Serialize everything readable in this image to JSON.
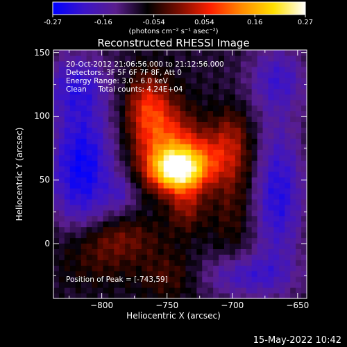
{
  "chart_data": {
    "type": "heatmap",
    "title": "Reconstructed RHESSI Image",
    "xlabel": "Heliocentric X (arcsec)",
    "ylabel": "Heliocentric Y (arcsec)",
    "xlim": [
      -837,
      -643
    ],
    "ylim": [
      -43,
      152
    ],
    "xticks": [
      -800,
      -750,
      -700,
      -650
    ],
    "yticks": [
      0,
      50,
      100,
      150
    ],
    "colorbar": {
      "range": [
        -0.27,
        0.27
      ],
      "ticks": [
        "-0.27",
        "-0.16",
        "-0.054",
        "0.054",
        "0.16",
        "0.27"
      ],
      "units": "(photons cm⁻² s⁻¹ asec⁻²)",
      "colors": [
        "#0000ff",
        "#3c14c8",
        "#5a1e8c",
        "#000000",
        "#7a0d00",
        "#ff2000",
        "#ff8c00",
        "#ffe000",
        "#ffffff"
      ]
    },
    "annotations": [
      "20-Oct-2012 21:06:56.000 to 21:12:56.000",
      "Detectors: 3F 5F 6F 7F 8F, Att 0",
      "Energy Range: 3.0 - 6.0 keV",
      "Clean     Total counts: 4.24E+04",
      "Position of Peak = [-743,59]"
    ],
    "peak": [
      -743,
      59
    ],
    "blobs": [
      {
        "x": -742,
        "y": 58,
        "sx": 14,
        "sy": 11,
        "v": 0.3
      },
      {
        "x": -752,
        "y": 80,
        "sx": 18,
        "sy": 22,
        "v": 0.15
      },
      {
        "x": -765,
        "y": 110,
        "sx": 12,
        "sy": 18,
        "v": 0.12
      },
      {
        "x": -718,
        "y": 68,
        "sx": 22,
        "sy": 15,
        "v": 0.11
      },
      {
        "x": -735,
        "y": 30,
        "sx": 10,
        "sy": 14,
        "v": 0.09
      },
      {
        "x": -700,
        "y": 35,
        "sx": 12,
        "sy": 30,
        "v": 0.06
      },
      {
        "x": -790,
        "y": 5,
        "sx": 25,
        "sy": 12,
        "v": 0.08
      },
      {
        "x": -748,
        "y": -25,
        "sx": 16,
        "sy": 14,
        "v": 0.06
      },
      {
        "x": -805,
        "y": -15,
        "sx": 22,
        "sy": 14,
        "v": 0.05
      },
      {
        "x": -700,
        "y": 90,
        "sx": 10,
        "sy": 14,
        "v": 0.06
      },
      {
        "x": -815,
        "y": 60,
        "sx": 18,
        "sy": 35,
        "v": -0.17
      },
      {
        "x": -820,
        "y": 125,
        "sx": 18,
        "sy": 18,
        "v": -0.1
      },
      {
        "x": -665,
        "y": 40,
        "sx": 14,
        "sy": 40,
        "v": -0.14
      },
      {
        "x": -665,
        "y": 130,
        "sx": 16,
        "sy": 18,
        "v": -0.1
      },
      {
        "x": -690,
        "y": -25,
        "sx": 25,
        "sy": 12,
        "v": -0.1
      },
      {
        "x": -785,
        "y": 40,
        "sx": 8,
        "sy": 10,
        "v": -0.06
      }
    ]
  },
  "footer": {
    "date": "15-May-2022 10:42"
  }
}
